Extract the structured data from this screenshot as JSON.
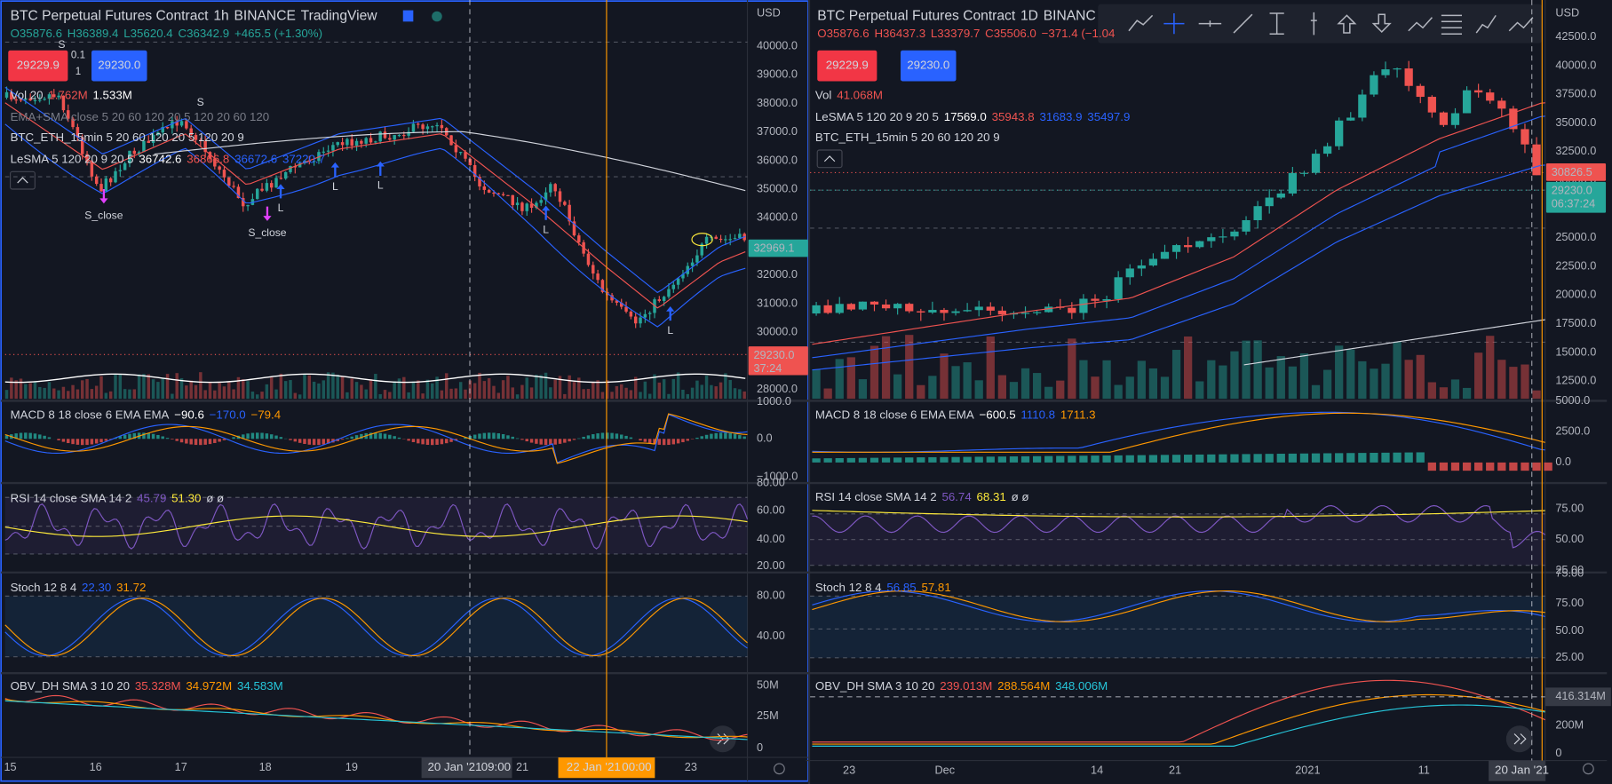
{
  "left": {
    "header": {
      "symbol": "BTC Perpetual Futures Contract",
      "interval": "1h",
      "exchange": "BINANCE",
      "source": "TradingView"
    },
    "ohlc": [
      "O35876.6",
      "H36389.4",
      "L35620.4",
      "C36342.9",
      "+465.5 (+1.30%)"
    ],
    "trade": {
      "sell": "29229.9",
      "qty_step": "0.1",
      "qty": "1",
      "buy": "29230.0"
    },
    "legends": [
      {
        "name": "Vol 20",
        "values": [
          "1.762M",
          "1.533M"
        ]
      },
      {
        "name": "EMA+SMA close 5 20 60 120 20 5 120 20 60 120"
      },
      {
        "name": "BTC_ETH_15min 5 20 60 120 20 5 120 20 9"
      },
      {
        "name": "LeSMA 5 120 20 9 20 5",
        "values": [
          "36742.6",
          "36866.8",
          "36672.6",
          "37220.7"
        ]
      }
    ],
    "currency": "USD",
    "price_axis": [
      "40000.0",
      "39000.0",
      "38000.0",
      "37000.0",
      "36000.0",
      "35000.0",
      "34000.0",
      "33000.0",
      "32000.0",
      "31000.0",
      "30000.0",
      "29000.0",
      "28000.0"
    ],
    "price_tags": [
      "32969.1",
      "29230.0",
      "37:24"
    ],
    "markers": [
      "S",
      "S",
      "S_close",
      "S_close",
      "L",
      "L",
      "L",
      "L",
      "L"
    ],
    "panes": [
      {
        "name": "MACD 8 18 close 6 EMA EMA",
        "values": [
          "−90.6",
          "−170.0",
          "−79.4"
        ],
        "axis": [
          "1000.0",
          "0.0",
          "−1000.0"
        ]
      },
      {
        "name": "RSI 14 close SMA 14 2",
        "values": [
          "45.79",
          "51.30",
          "ø ø"
        ],
        "axis": [
          "80.00",
          "60.00",
          "40.00",
          "20.00"
        ]
      },
      {
        "name": "Stoch 12 8 4",
        "values": [
          "22.30",
          "31.72"
        ],
        "axis": [
          "80.00",
          "40.00"
        ]
      },
      {
        "name": "OBV_DH SMA 3 10 20",
        "values": [
          "35.328M",
          "34.972M",
          "34.583M"
        ],
        "axis": [
          "50M",
          "25M",
          "0"
        ]
      }
    ],
    "time_axis": [
      "15",
      "16",
      "17",
      "18",
      "19",
      "21",
      "23"
    ],
    "cursor_time": [
      "20 Jan '21",
      "09:00"
    ],
    "crosshair_time": [
      "22 Jan '21",
      "00:00"
    ]
  },
  "right": {
    "header": {
      "symbol": "BTC Perpetual Futures Contract",
      "interval": "1D",
      "exchange": "BINANC"
    },
    "ohlc": [
      "O35876.6",
      "H36437.3",
      "L33379.7",
      "C35506.0",
      "−371.4 (−1.04"
    ],
    "trade": {
      "sell": "29229.9",
      "buy": "29230.0"
    },
    "legends": [
      {
        "name": "Vol",
        "values": [
          "41.068M"
        ]
      },
      {
        "name": "LeSMA 5 120 20 9 20 5",
        "values": [
          "17569.0",
          "35943.8",
          "31683.9",
          "35497.9"
        ]
      },
      {
        "name": "BTC_ETH_15min 5 20 60 120 20 9"
      }
    ],
    "currency": "USD",
    "price_axis": [
      "42500.0",
      "40000.0",
      "37500.0",
      "35000.0",
      "32500.0",
      "30000.0",
      "27500.0",
      "25000.0",
      "22500.0",
      "20000.0",
      "17500.0",
      "15000.0",
      "12500.0"
    ],
    "price_tags": [
      "30826.5",
      "29230.0",
      "06:37:24"
    ],
    "panes": [
      {
        "name": "MACD 8 18 close 6 EMA EMA",
        "values": [
          "−600.5",
          "1110.8",
          "1711.3"
        ],
        "axis": [
          "5000.0",
          "2500.0",
          "0.0"
        ]
      },
      {
        "name": "RSI 14 close SMA 14 2",
        "values": [
          "56.74",
          "68.31",
          "ø ø"
        ],
        "axis": [
          "75.00",
          "50.00",
          "25.00"
        ]
      },
      {
        "name": "Stoch 12 8 4",
        "values": [
          "56.85",
          "57.81"
        ],
        "axis": [
          "75.00",
          "75.00",
          "50.00",
          "25.00"
        ]
      },
      {
        "name": "OBV_DH SMA 3 10 20",
        "values": [
          "239.013M",
          "288.564M",
          "348.006M"
        ],
        "axis": [
          "416.314M",
          "200M",
          "0"
        ]
      }
    ],
    "time_axis": [
      "23",
      "Dec",
      "14",
      "21",
      "2021",
      "11"
    ],
    "cursor_time": [
      "20 Jan '21"
    ]
  }
}
